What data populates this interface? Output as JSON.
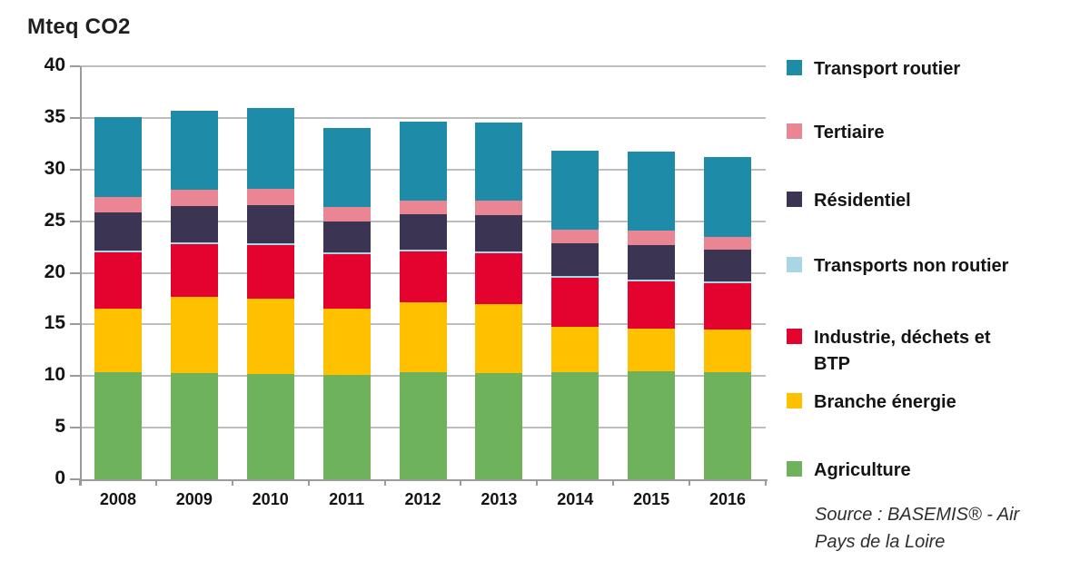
{
  "chart_data": {
    "type": "bar",
    "stacked": true,
    "title": "Mteq CO2",
    "xlabel": "",
    "ylabel": "Mteq CO2",
    "ylim": [
      0,
      40
    ],
    "yticks": [
      0,
      5,
      10,
      15,
      20,
      25,
      30,
      35,
      40
    ],
    "grid": true,
    "legend_position": "right",
    "categories": [
      "2008",
      "2009",
      "2010",
      "2011",
      "2012",
      "2013",
      "2014",
      "2015",
      "2016"
    ],
    "series": [
      {
        "name": "Agriculture",
        "color": "#6FB25C",
        "values": [
          10.4,
          10.3,
          10.2,
          10.1,
          10.4,
          10.3,
          10.4,
          10.5,
          10.4
        ]
      },
      {
        "name": "Branche énergie",
        "color": "#FFC000",
        "values": [
          6.1,
          7.4,
          7.3,
          6.4,
          6.7,
          6.7,
          4.4,
          4.1,
          4.1
        ]
      },
      {
        "name": "Industrie, déchets et BTP",
        "color": "#E4032E",
        "values": [
          5.5,
          5.1,
          5.2,
          5.3,
          5.0,
          4.9,
          4.7,
          4.6,
          4.5
        ]
      },
      {
        "name": "Transports non routier",
        "color": "#A9D6E5",
        "values": [
          0.15,
          0.15,
          0.15,
          0.15,
          0.15,
          0.15,
          0.15,
          0.15,
          0.15
        ]
      },
      {
        "name": "Résidentiel",
        "color": "#3B3452",
        "values": [
          3.7,
          3.5,
          3.7,
          3.0,
          3.4,
          3.5,
          3.25,
          3.35,
          3.1
        ]
      },
      {
        "name": "Tertiaire",
        "color": "#EA8593",
        "values": [
          1.45,
          1.6,
          1.6,
          1.4,
          1.3,
          1.4,
          1.25,
          1.35,
          1.25
        ]
      },
      {
        "name": "Transport routier",
        "color": "#1E8CA8",
        "values": [
          7.75,
          7.6,
          7.8,
          7.7,
          7.7,
          7.6,
          7.7,
          7.7,
          7.7
        ]
      }
    ],
    "legend": [
      {
        "series": "Transport routier",
        "text": "Transport routier"
      },
      {
        "series": "Tertiaire",
        "text": "Tertiaire"
      },
      {
        "series": "Résidentiel",
        "text": "Résidentiel"
      },
      {
        "series": "Transports non routier",
        "text": "Transports non routier"
      },
      {
        "series": "Industrie, déchets et BTP",
        "text": "Industrie, déchets et\nBTP"
      },
      {
        "series": "Branche énergie",
        "text": "Branche énergie"
      },
      {
        "series": "Agriculture",
        "text": "Agriculture"
      }
    ],
    "source": "Source : BASEMIS® - Air\nPays de la Loire"
  },
  "colors": {
    "gridline": "#BDBDBD",
    "axis": "#9B9B9B",
    "text": "#141414"
  }
}
